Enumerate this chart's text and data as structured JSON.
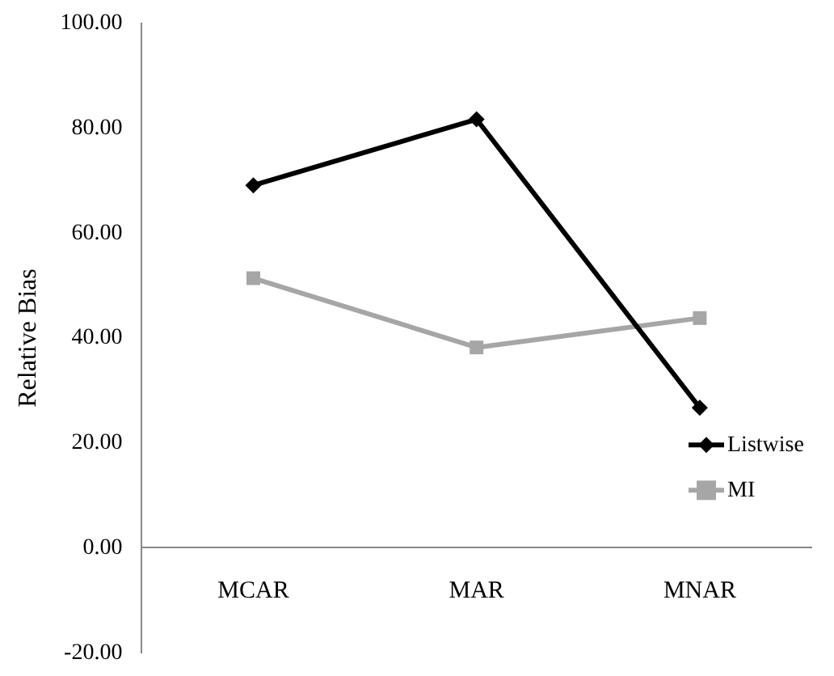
{
  "chart_data": {
    "type": "line",
    "ylabel": "Relative Bias",
    "categories": [
      "MCAR",
      "MAR",
      "MNAR"
    ],
    "series": [
      {
        "name": "Listwise",
        "color": "#000000",
        "marker": "diamond",
        "values": [
          69.1,
          81.7,
          26.7
        ]
      },
      {
        "name": "MI",
        "color": "#a6a6a6",
        "marker": "square",
        "values": [
          51.4,
          38.2,
          43.8
        ]
      }
    ],
    "ylim": [
      -20,
      100
    ],
    "yticks": [
      {
        "value": -20,
        "label": "-20.00"
      },
      {
        "value": 0,
        "label": "0.00"
      },
      {
        "value": 20,
        "label": "20.00"
      },
      {
        "value": 40,
        "label": "40.00"
      },
      {
        "value": 60,
        "label": "60.00"
      },
      {
        "value": 80,
        "label": "80.00"
      },
      {
        "value": 100,
        "label": "100.00"
      }
    ],
    "grid": false,
    "legend": "right",
    "line_style": "solid"
  }
}
